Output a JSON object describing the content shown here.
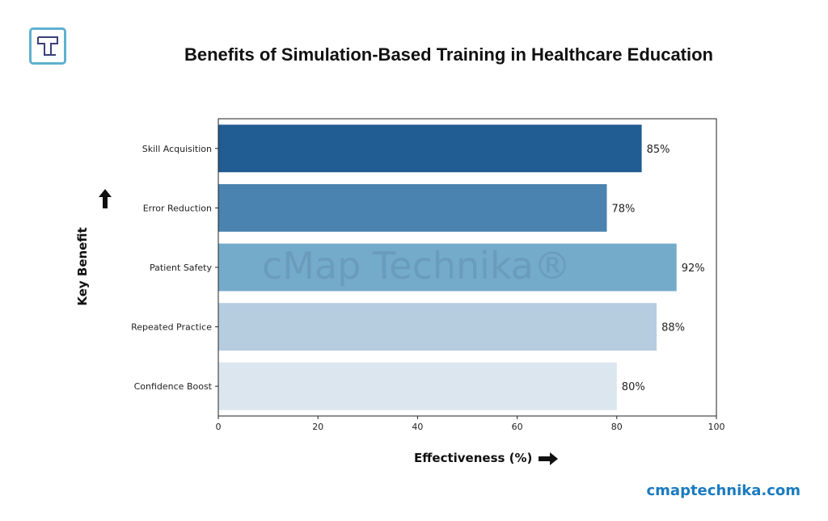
{
  "brand": {
    "logo_letter": "T",
    "website": "cmaptechnika.com",
    "watermark": "cMap Technika®"
  },
  "chart_data": {
    "type": "bar",
    "orientation": "horizontal",
    "title": "Benefits of Simulation-Based Training in Healthcare Education",
    "xlabel": "Effectiveness (%)",
    "ylabel": "Key Benefit",
    "categories": [
      "Skill Acquisition",
      "Error Reduction",
      "Patient Safety",
      "Repeated Practice",
      "Confidence Boost"
    ],
    "values": [
      85,
      78,
      92,
      88,
      80
    ],
    "data_labels": [
      "85%",
      "78%",
      "92%",
      "88%",
      "80%"
    ],
    "colors": [
      "#215d93",
      "#4a83b0",
      "#75abca",
      "#b6cde0",
      "#dce6ef"
    ],
    "xlim": [
      0,
      100
    ],
    "xticks": [
      0,
      20,
      40,
      60,
      80,
      100
    ],
    "grid": false
  }
}
